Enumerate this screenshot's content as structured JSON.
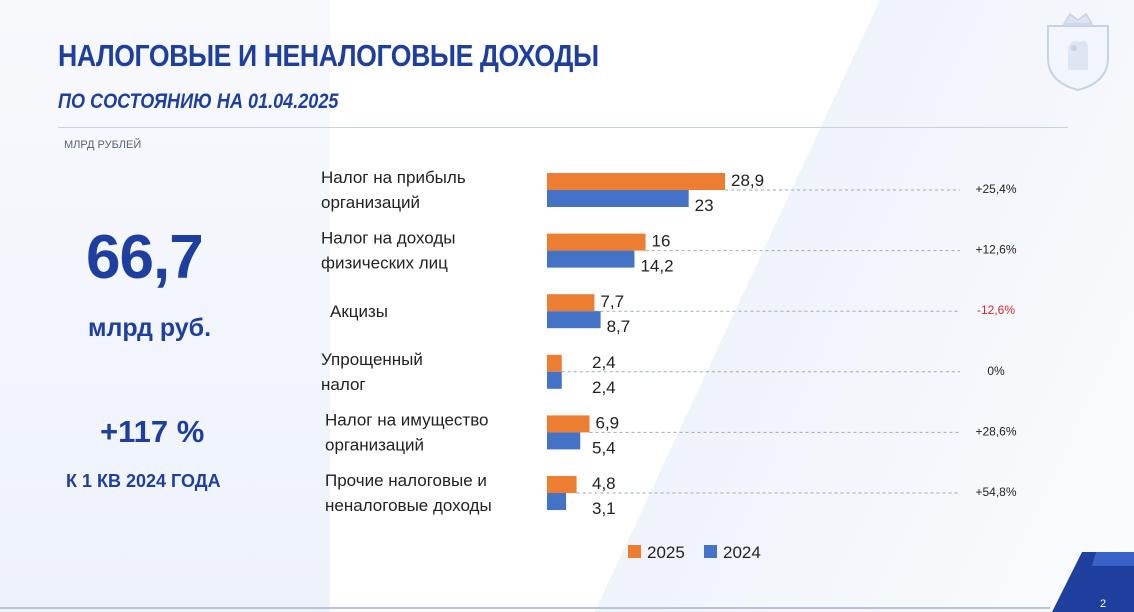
{
  "header": {
    "title": "НАЛОГОВЫЕ И НЕНАЛОГОВЫЕ ДОХОДЫ",
    "subtitle": "ПО СОСТОЯНИЮ НА 01.04.2025",
    "units": "МЛРД РУБЛЕЙ"
  },
  "summary": {
    "total_value": "66,7",
    "total_unit": "млрд руб.",
    "growth": "+117 %",
    "growth_note": "К 1 КВ 2024 ГОДА"
  },
  "page_number": "2",
  "colors": {
    "series_2025": "#ed7d31",
    "series_2024": "#4472c4",
    "negative": "#d62728",
    "brand_blue": "#1f3f9f"
  },
  "icons": [
    "emblem-icon"
  ],
  "chart_data": {
    "type": "bar",
    "orientation": "horizontal",
    "title": "",
    "xlabel": "",
    "ylabel": "",
    "xlim": [
      0,
      30
    ],
    "grid": false,
    "legend_position": "bottom",
    "categories": [
      [
        "Налог на прибыль",
        "организаций"
      ],
      [
        "Налог на доходы",
        "физических лиц"
      ],
      [
        "Акцизы"
      ],
      [
        "Упрощенный",
        "налог"
      ],
      [
        "Налог на имущество",
        "организаций"
      ],
      [
        "Прочие налоговые и",
        "неналоговые доходы"
      ]
    ],
    "series": [
      {
        "name": "2025",
        "values": [
          28.9,
          16,
          7.7,
          2.4,
          6.9,
          4.8
        ],
        "labels": [
          "28,9",
          "16",
          "7,7",
          "2,4",
          "6,9",
          "4,8"
        ]
      },
      {
        "name": "2024",
        "values": [
          23,
          14.2,
          8.7,
          2.4,
          5.4,
          3.1
        ],
        "labels": [
          "23",
          "14,2",
          "8,7",
          "2,4",
          "5,4",
          "3,1"
        ]
      }
    ],
    "changes": [
      "+25,4%",
      "+12,6%",
      "-12,6%",
      "0%",
      "+28,6%",
      "+54,8%"
    ],
    "negative_changes": [
      false,
      false,
      true,
      false,
      false,
      false
    ]
  }
}
